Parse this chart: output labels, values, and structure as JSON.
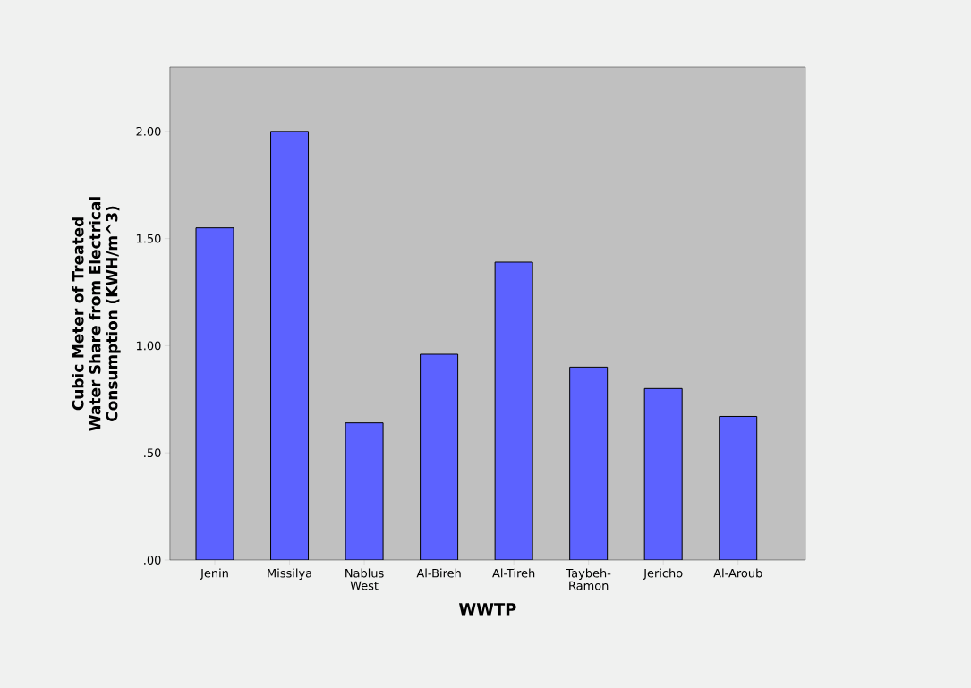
{
  "chart_data": {
    "type": "bar",
    "xlabel": "WWTP",
    "ylabel": "Cubic Meter of Treated Water Share from Electrical Consumption (KWH/m^3)",
    "categories": [
      "Jenin",
      "Missilya",
      "Nablus West",
      "Al-Bireh",
      "Al-Tireh",
      "Taybeh-Ramon",
      "Jericho",
      "Al-Aroub"
    ],
    "values": [
      1.55,
      2.0,
      0.64,
      0.96,
      1.39,
      0.9,
      0.8,
      0.67
    ],
    "color": "#5c62ff",
    "ylim": [
      0,
      2.3
    ],
    "yticks": [
      {
        "value": 0,
        "label": ".00"
      },
      {
        "value": 0.5,
        "label": ".50"
      },
      {
        "value": 1,
        "label": "1.00"
      },
      {
        "value": 1.5,
        "label": "1.50"
      },
      {
        "value": 2,
        "label": "2.00"
      }
    ],
    "grid": false
  }
}
